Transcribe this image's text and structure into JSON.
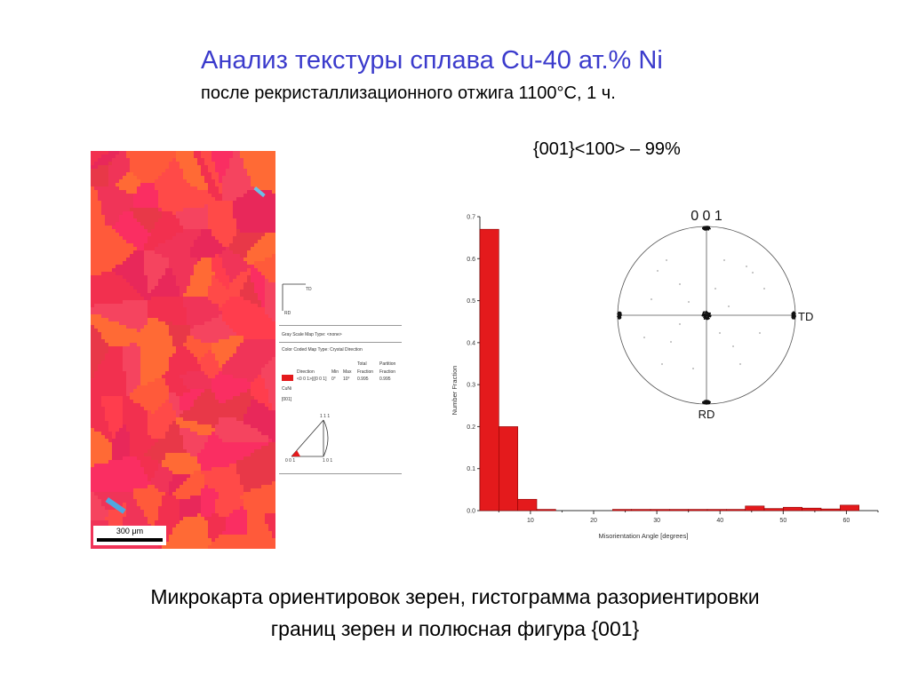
{
  "slide": {
    "title": "Анализ текстуры сплава Cu-40 ат.% Ni",
    "subtitle": "после рекристаллизационного отжига 1100°С, 1 ч.",
    "texture_component": "{001}<100> – 99%",
    "caption_line1": "Микрокарта ориентировок зерен, гистограмма разориентировки",
    "caption_line2": "границ зерен и полюсная фигура {001}"
  },
  "ebsd_map": {
    "scale_bar": "300 μm",
    "palette": [
      "#f2304f",
      "#ff4a48",
      "#f03458",
      "#ff5a3a",
      "#e8285a",
      "#ff3d4d",
      "#f5445f",
      "#ff6a35",
      "#e83848",
      "#fa2e62"
    ]
  },
  "map_legend": {
    "axis_td": "TD",
    "axis_rd": "RD",
    "gray_scale": "Gray Scale Map Type: <none>",
    "color_coded": "Color Coded Map Type: Crystal Direction",
    "headers": {
      "direction": "Direction",
      "min": "Min",
      "max": "Max",
      "total_1": "Total",
      "total_2": "Fraction",
      "partition_1": "Partition",
      "partition_2": "Fraction"
    },
    "row": {
      "direction": "<0 0 1>||[0 0 1]",
      "min": "0°",
      "max": "10°",
      "total": "0.995",
      "partition": "0.995",
      "color": "#e41a1c"
    },
    "phase": "CuNi",
    "plane": "[001]",
    "tri_111": "1 1 1",
    "tri_001": "0 0 1",
    "tri_101": "1 0 1"
  },
  "chart_data": [
    {
      "type": "bar",
      "xlabel": "Misorientation Angle [degrees]",
      "ylabel": "Number Fraction",
      "xlim": [
        2,
        65
      ],
      "ylim": [
        0,
        0.7
      ],
      "xticks": [
        "10",
        "20",
        "30",
        "40",
        "50",
        "60"
      ],
      "yticks": [
        "0.0",
        "0.1",
        "0.2",
        "0.3",
        "0.4",
        "0.5",
        "0.6",
        "0.7"
      ],
      "bin_width": 3,
      "x": [
        3.5,
        6.5,
        9.5,
        12.5,
        15.5,
        18.5,
        21.5,
        24.5,
        27.5,
        30.5,
        33.5,
        36.5,
        39.5,
        42.5,
        45.5,
        48.5,
        51.5,
        54.5,
        57.5,
        60.5
      ],
      "values": [
        0.67,
        0.2,
        0.027,
        0.003,
        0.0,
        0.0,
        0.0,
        0.003,
        0.003,
        0.003,
        0.003,
        0.003,
        0.003,
        0.003,
        0.011,
        0.005,
        0.008,
        0.006,
        0.004,
        0.013
      ],
      "bar_color": "#e41a1c"
    },
    {
      "type": "scatter",
      "title": "0 0 1",
      "labels": {
        "right": "TD",
        "bottom": "RD"
      },
      "clusters": [
        {
          "x": 0.0,
          "y": 0.0,
          "count": 90,
          "spread": 0.04
        },
        {
          "x": 0.0,
          "y": 0.98,
          "count": 70,
          "spread": 0.035
        },
        {
          "x": 0.0,
          "y": -0.98,
          "count": 70,
          "spread": 0.035
        },
        {
          "x": 0.98,
          "y": 0.0,
          "count": 60,
          "spread": 0.035
        },
        {
          "x": -0.98,
          "y": 0.0,
          "count": 70,
          "spread": 0.035
        }
      ],
      "scatter_points": [
        [
          -0.55,
          0.5
        ],
        [
          0.45,
          0.55
        ],
        [
          0.52,
          0.48
        ],
        [
          -0.3,
          0.35
        ],
        [
          0.3,
          -0.35
        ],
        [
          -0.4,
          -0.3
        ],
        [
          0.6,
          -0.2
        ],
        [
          -0.62,
          0.18
        ],
        [
          0.2,
          0.62
        ],
        [
          -0.15,
          -0.6
        ],
        [
          0.38,
          -0.55
        ],
        [
          -0.5,
          -0.55
        ],
        [
          0.1,
          0.3
        ],
        [
          -0.2,
          0.15
        ],
        [
          0.25,
          0.1
        ],
        [
          -0.45,
          0.62
        ],
        [
          0.65,
          0.3
        ],
        [
          -0.7,
          -0.25
        ],
        [
          0.15,
          -0.2
        ],
        [
          -0.3,
          -0.1
        ]
      ]
    }
  ]
}
